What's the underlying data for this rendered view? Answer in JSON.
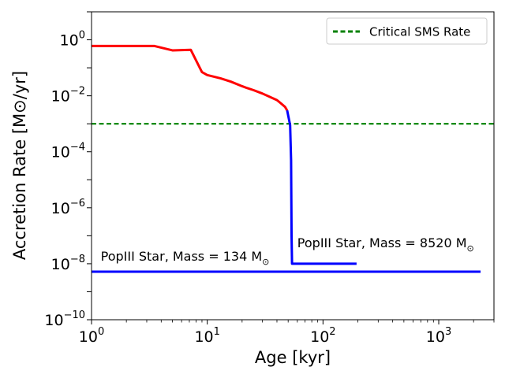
{
  "chart_data": {
    "type": "line",
    "xscale": "log",
    "yscale": "log",
    "xlabel": "Age [kyr]",
    "ylabel": "Accretion Rate [M⊙/yr]",
    "xlim": [
      1,
      3000
    ],
    "ylim": [
      1e-10,
      10
    ],
    "xticks": [
      {
        "value": 1,
        "base": "10",
        "exp": "0"
      },
      {
        "value": 10,
        "base": "10",
        "exp": "1"
      },
      {
        "value": 100,
        "base": "10",
        "exp": "2"
      },
      {
        "value": 1000,
        "base": "10",
        "exp": "3"
      }
    ],
    "yticks": [
      {
        "value": 1,
        "base": "10",
        "exp": "0"
      },
      {
        "value": 0.01,
        "base": "10",
        "exp": "−2"
      },
      {
        "value": 0.0001,
        "base": "10",
        "exp": "−4"
      },
      {
        "value": 1e-06,
        "base": "10",
        "exp": "−6"
      },
      {
        "value": 1e-08,
        "base": "10",
        "exp": "−8"
      },
      {
        "value": 1e-10,
        "base": "10",
        "exp": "−10"
      }
    ],
    "legend": {
      "placement": "top-right",
      "entries": [
        {
          "label": "Critical SMS Rate",
          "color": "#008000",
          "style": "dashed"
        }
      ]
    },
    "series": [
      {
        "name": "Critical SMS Rate",
        "color": "#008000",
        "style": "dashed",
        "x": [
          1,
          3000
        ],
        "y": [
          0.001,
          0.001
        ]
      },
      {
        "name": "accretion-above-critical",
        "color": "#ff0000",
        "style": "solid",
        "x": [
          1,
          3.5,
          5,
          7.2,
          9,
          10,
          13,
          16,
          20,
          22,
          25,
          30,
          35,
          40,
          43,
          47,
          49
        ],
        "y": [
          0.6,
          0.6,
          0.42,
          0.44,
          0.07,
          0.055,
          0.042,
          0.032,
          0.022,
          0.019,
          0.016,
          0.012,
          0.009,
          0.007,
          0.0055,
          0.004,
          0.003
        ]
      },
      {
        "name": "accretion-below-critical",
        "color": "#0000ff",
        "style": "solid",
        "x": [
          49,
          52,
          53,
          53.5,
          54,
          195
        ],
        "y": [
          0.003,
          0.0009,
          5e-05,
          1e-07,
          1e-08,
          1e-08
        ]
      },
      {
        "name": "popiii-134",
        "color": "#0000ff",
        "style": "solid",
        "x": [
          1,
          2300
        ],
        "y": [
          5.2e-09,
          5.2e-09
        ]
      }
    ],
    "annotations": [
      {
        "id": "ann-134",
        "prefix": "PopIII Star, Mass = 134 M",
        "sub": "⊙",
        "x": 1.2,
        "y": 1e-08
      },
      {
        "id": "ann-8520",
        "prefix": "PopIII Star, Mass = 8520 M",
        "sub": "⊙",
        "x": 60,
        "y": 3e-08
      }
    ]
  }
}
